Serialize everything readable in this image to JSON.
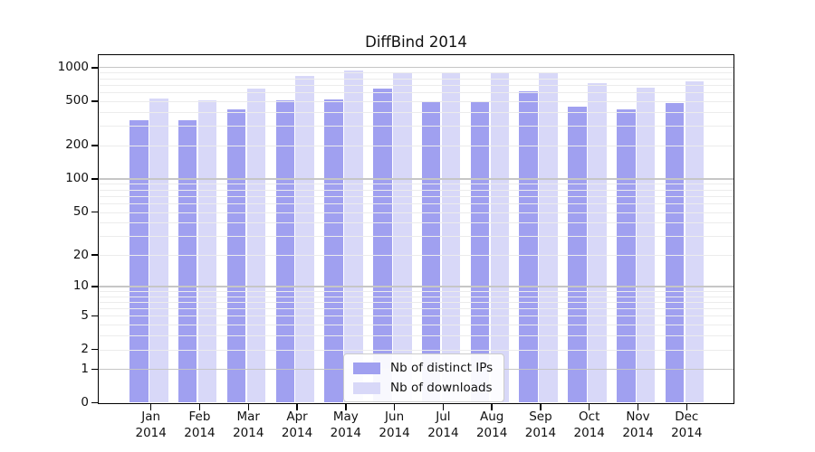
{
  "title": "DiffBind 2014",
  "legend": {
    "items": [
      {
        "label": "Nb of distinct IPs",
        "color": "#a0a0f0"
      },
      {
        "label": "Nb of downloads",
        "color": "#d8d8f8"
      }
    ]
  },
  "chart_data": {
    "type": "bar",
    "title": "DiffBind 2014",
    "categories": [
      "Jan",
      "Feb",
      "Mar",
      "Apr",
      "May",
      "Jun",
      "Jul",
      "Aug",
      "Sep",
      "Oct",
      "Nov",
      "Dec"
    ],
    "year": "2014",
    "series": [
      {
        "name": "Nb of distinct IPs",
        "color": "#a0a0f0",
        "values": [
          335,
          335,
          420,
          505,
          515,
          650,
          500,
          490,
          610,
          450,
          420,
          480
        ]
      },
      {
        "name": "Nb of downloads",
        "color": "#d8d8f8",
        "values": [
          527,
          512,
          650,
          840,
          945,
          905,
          905,
          905,
          885,
          720,
          660,
          760
        ]
      }
    ],
    "xlabel": "",
    "ylabel": "",
    "yscale": "log1p",
    "yticks": [
      0,
      1,
      2,
      5,
      10,
      20,
      50,
      100,
      200,
      500,
      1000
    ],
    "ylim": [
      0,
      1300
    ],
    "grid": "horizontal, log minor + major, drawn over bars",
    "legend_position": "inside bottom-center"
  },
  "colors": {
    "background": "#ffffff",
    "axis": "#000000",
    "text": "#111111",
    "major_grid": "#c6c6c6",
    "minor_grid": "#ececec"
  }
}
